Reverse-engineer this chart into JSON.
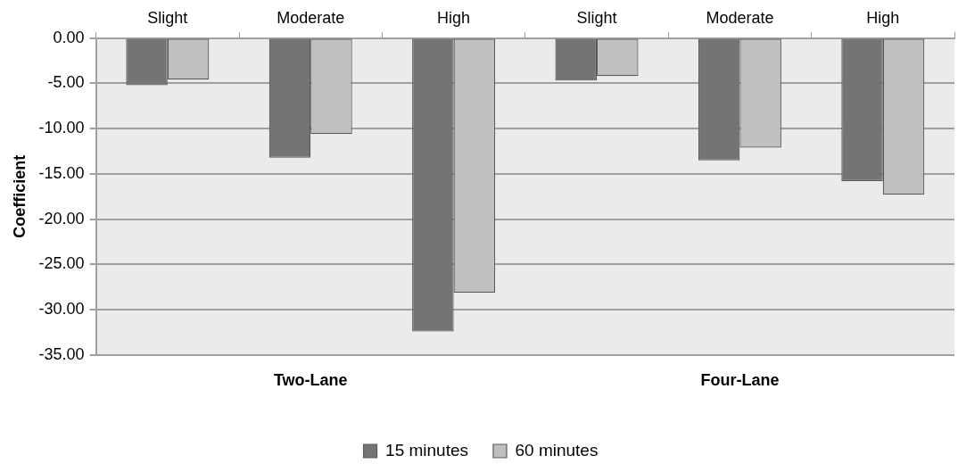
{
  "chart_data": {
    "type": "bar",
    "ylabel": "Coefficient",
    "categories": [
      "Slight",
      "Moderate",
      "High",
      "Slight",
      "Moderate",
      "High"
    ],
    "series": [
      {
        "name": "15 minutes",
        "color": "#747474",
        "values": [
          -5.2,
          -13.2,
          -32.4,
          -4.7,
          -13.5,
          -15.8
        ]
      },
      {
        "name": "60 minutes",
        "color": "#c0c0c0",
        "values": [
          -4.6,
          -10.6,
          -28.1,
          -4.2,
          -12.1,
          -17.3
        ]
      }
    ],
    "ylim": [
      -35,
      0
    ],
    "yticks": [
      {
        "value": 0,
        "label": "0.00"
      },
      {
        "value": -5,
        "label": "-5.00"
      },
      {
        "value": -10,
        "label": "-10.00"
      },
      {
        "value": -15,
        "label": "-15.00"
      },
      {
        "value": -20,
        "label": "-20.00"
      },
      {
        "value": -25,
        "label": "-25.00"
      },
      {
        "value": -30,
        "label": "-30.00"
      },
      {
        "value": -35,
        "label": "-35.00"
      }
    ],
    "grid": "y",
    "legend": "bottom",
    "annotations": [
      "Two-Lane",
      "Four-Lane"
    ]
  }
}
